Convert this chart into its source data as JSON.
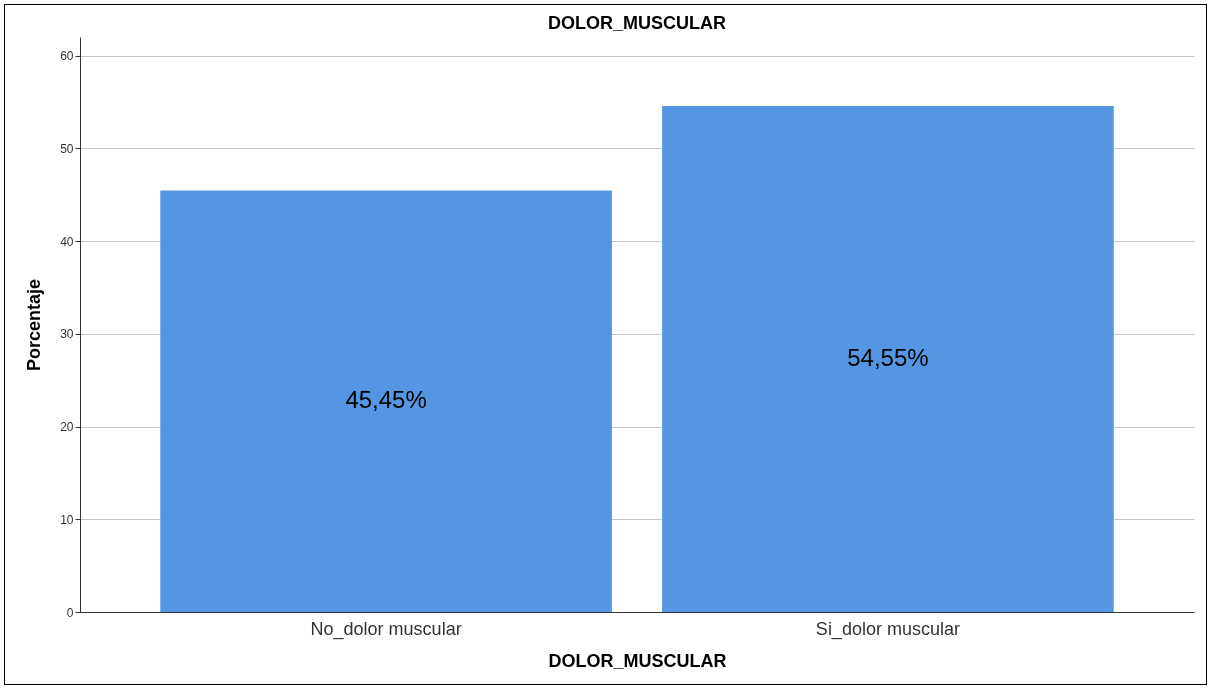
{
  "chart_data": {
    "type": "bar",
    "title": "DOLOR_MUSCULAR",
    "xlabel": "DOLOR_MUSCULAR",
    "ylabel": "Porcentaje",
    "categories": [
      "No_dolor muscular",
      "Si_dolor muscular"
    ],
    "values": [
      45.45,
      54.55
    ],
    "value_labels": [
      "45,45%",
      "54,55%"
    ],
    "color": "#5596e3",
    "ylim": [
      0,
      62
    ],
    "yticks": [
      0,
      10,
      20,
      30,
      40,
      50,
      60
    ],
    "grid": "y"
  }
}
